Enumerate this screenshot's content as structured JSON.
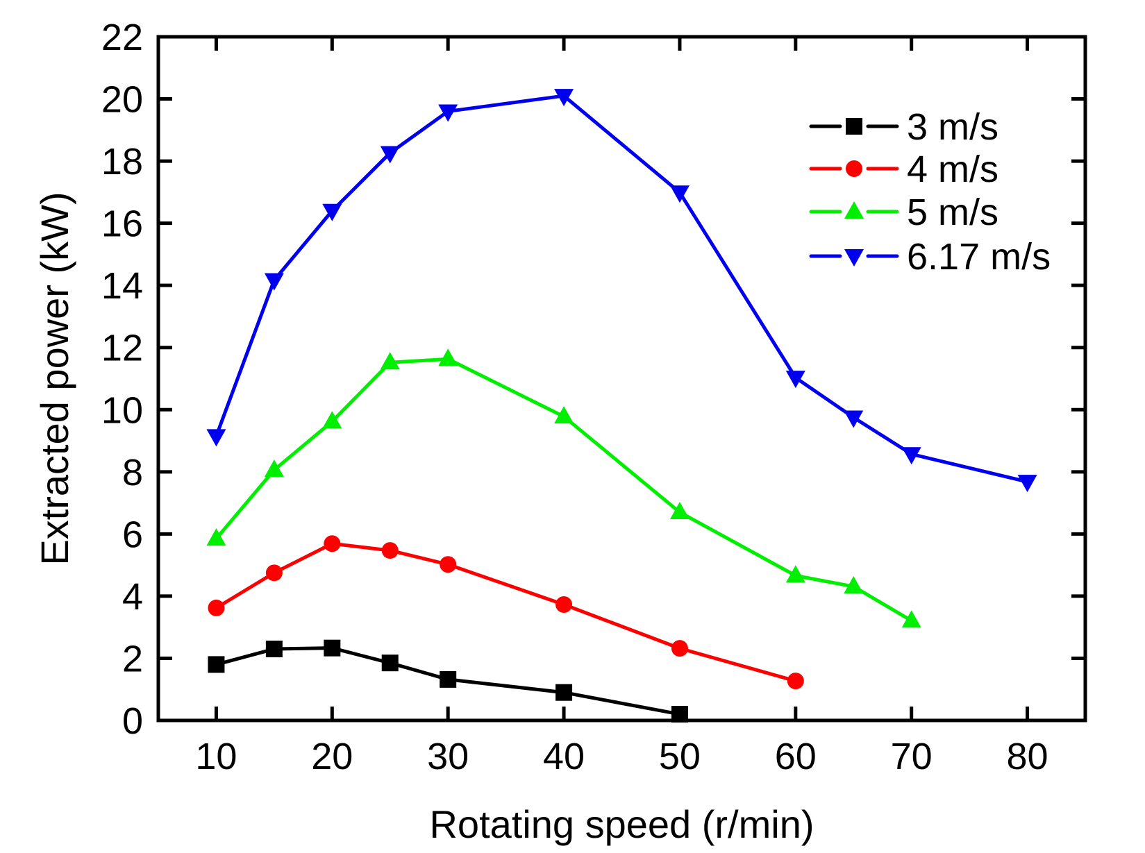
{
  "chart_data": {
    "type": "line",
    "title": "",
    "xlabel": "Rotating speed (r/min)",
    "ylabel": "Extracted power (kW)",
    "xlim": [
      5,
      85
    ],
    "ylim": [
      0,
      22
    ],
    "xticks": [
      10,
      20,
      30,
      40,
      50,
      60,
      70,
      80
    ],
    "yticks": [
      0,
      2,
      4,
      6,
      8,
      10,
      12,
      14,
      16,
      18,
      20,
      22
    ],
    "xtick_labels": [
      "10",
      "20",
      "30",
      "40",
      "50",
      "60",
      "70",
      "80"
    ],
    "ytick_labels": [
      "0",
      "2",
      "4",
      "6",
      "8",
      "10",
      "12",
      "14",
      "16",
      "18",
      "20",
      "22"
    ],
    "grid": false,
    "legend_position": "top-right",
    "series": [
      {
        "name": "3 m/s",
        "color": "#000000",
        "marker": "square",
        "x": [
          10,
          15,
          20,
          25,
          30,
          40,
          50
        ],
        "y": [
          1.8,
          2.3,
          2.33,
          1.85,
          1.32,
          0.9,
          0.2
        ]
      },
      {
        "name": "4 m/s",
        "color": "#ff0000",
        "marker": "circle",
        "x": [
          10,
          15,
          20,
          25,
          30,
          40,
          50,
          60
        ],
        "y": [
          3.62,
          4.75,
          5.69,
          5.47,
          5.02,
          3.73,
          2.32,
          1.27
        ]
      },
      {
        "name": "5 m/s",
        "color": "#00ee00",
        "marker": "triangle-up",
        "x": [
          10,
          15,
          20,
          25,
          30,
          40,
          50,
          60,
          65,
          70
        ],
        "y": [
          5.85,
          8.06,
          9.62,
          11.52,
          11.63,
          9.78,
          6.7,
          4.66,
          4.31,
          3.21
        ]
      },
      {
        "name": "6.17 m/s",
        "color": "#0000ee",
        "marker": "triangle-down",
        "x": [
          10,
          15,
          20,
          25,
          30,
          40,
          50,
          60,
          65,
          70,
          80
        ],
        "y": [
          9.15,
          14.17,
          16.4,
          18.26,
          19.6,
          20.1,
          16.99,
          11.03,
          9.75,
          8.57,
          7.68
        ]
      }
    ]
  }
}
